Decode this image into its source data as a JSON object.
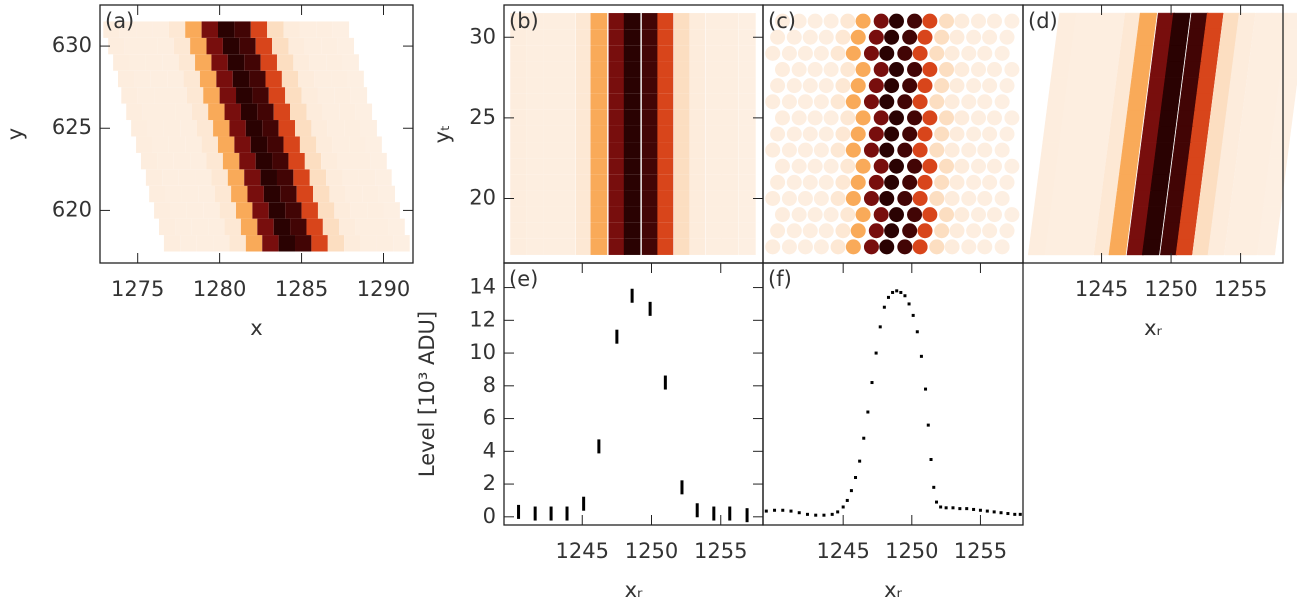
{
  "chart_data": [
    {
      "type": "heatmap",
      "label": "(a)",
      "xlabel": "x",
      "ylabel": "y",
      "rows": [
        618,
        619,
        620,
        621,
        622,
        623,
        624,
        625,
        626,
        627,
        628,
        629,
        630,
        631
      ],
      "trace": [
        1284.1,
        1283.8,
        1283.5,
        1283.2,
        1283.0,
        1282.7,
        1282.4,
        1282.1,
        1281.8,
        1281.5,
        1281.3,
        1281.0,
        1280.7,
        1280.4
      ],
      "values": [
        0.3,
        0.2,
        0.2,
        0.2,
        0.8,
        4.3,
        11.0,
        13.5,
        12.7,
        8.2,
        1.8,
        0.4,
        0.2,
        0.2,
        0.1
      ],
      "xlim": [
        1272.7,
        1291.8
      ],
      "ylim": [
        616.8,
        632.5
      ],
      "xticks": [
        1275,
        1280,
        1285,
        1290
      ],
      "yticks": [
        620,
        625,
        630
      ],
      "colormap": [
        "#fdf0e4",
        "#fcd9b8",
        "#f9a550",
        "#f47a1a",
        "#c8281c",
        "#6e0b0b",
        "#2a0202"
      ]
    },
    {
      "type": "heatmap",
      "label": "(b)",
      "ylabel": "yₜ",
      "x": [
        1240.4,
        1241.6,
        1242.75,
        1243.9,
        1245.1,
        1246.2,
        1247.5,
        1248.6,
        1249.9,
        1251.0,
        1252.2,
        1253.3,
        1254.5,
        1255.65,
        1256.9
      ],
      "rows": [
        17,
        18,
        19,
        20,
        21,
        22,
        23,
        24,
        25,
        26,
        27,
        28,
        29,
        30,
        31
      ],
      "values": [
        0.3,
        0.2,
        0.2,
        0.2,
        0.8,
        4.3,
        11.0,
        13.5,
        12.7,
        8.2,
        1.8,
        0.4,
        0.2,
        0.2,
        0.1
      ],
      "xlim": [
        1239.35,
        1258.05
      ],
      "ylim": [
        16,
        32
      ],
      "yticks": [
        20,
        25,
        30
      ],
      "colormap": [
        "#fdf0e4",
        "#fcd9b8",
        "#f9a550",
        "#f47a1a",
        "#c8281c",
        "#6e0b0b",
        "#2a0202"
      ]
    },
    {
      "type": "dots",
      "label": "(c)",
      "x": [
        1240.4,
        1241.6,
        1242.75,
        1243.9,
        1245.1,
        1246.2,
        1247.5,
        1248.6,
        1249.9,
        1251.0,
        1252.2,
        1253.3,
        1254.5,
        1255.65,
        1256.9
      ],
      "rows": [
        17,
        18,
        19,
        20,
        21,
        22,
        23,
        24,
        25,
        26,
        27,
        28,
        29,
        30,
        31
      ],
      "values": [
        0.3,
        0.2,
        0.2,
        0.2,
        0.8,
        4.3,
        11.0,
        13.5,
        12.7,
        8.2,
        1.8,
        0.4,
        0.2,
        0.2,
        0.1
      ],
      "xlim": [
        1239.35,
        1258.05
      ],
      "ylim": [
        16,
        32
      ],
      "colormap": [
        "#fdf0e4",
        "#fcd9b8",
        "#f9a550",
        "#f47a1a",
        "#c8281c",
        "#6e0b0b",
        "#2a0202"
      ]
    },
    {
      "type": "heatmap",
      "label": "(d)",
      "xlabel": "xᵣ",
      "sheared": true,
      "x": [
        1240.4,
        1241.6,
        1242.75,
        1243.9,
        1245.1,
        1246.2,
        1247.5,
        1248.6,
        1249.9,
        1251.0,
        1252.2,
        1253.3,
        1254.5,
        1255.65,
        1256.9
      ],
      "rows": [
        17,
        18,
        19,
        20,
        21,
        22,
        23,
        24,
        25,
        26,
        27,
        28,
        29,
        30,
        31
      ],
      "values": [
        0.3,
        0.2,
        0.2,
        0.2,
        0.8,
        4.3,
        11.0,
        13.5,
        12.7,
        8.2,
        1.8,
        0.4,
        0.2,
        0.2,
        0.1
      ],
      "xlim": [
        1239.35,
        1258.05
      ],
      "ylim": [
        16,
        32
      ],
      "xticks": [
        1245,
        1250,
        1255
      ],
      "colormap": [
        "#fdf0e4",
        "#fcd9b8",
        "#f9a550",
        "#f47a1a",
        "#c8281c",
        "#6e0b0b",
        "#2a0202"
      ]
    },
    {
      "type": "scatter",
      "marker": "dash",
      "label": "(e)",
      "xlabel": "xᵣ",
      "ylabel": "Level [10³ ADU]",
      "color": "#000000",
      "x": [
        1240.4,
        1241.6,
        1242.75,
        1243.9,
        1245.1,
        1246.2,
        1247.5,
        1248.6,
        1249.9,
        1251.0,
        1252.2,
        1253.3,
        1254.5,
        1255.65,
        1256.9
      ],
      "values": [
        0.3,
        0.2,
        0.2,
        0.2,
        0.8,
        4.3,
        11.0,
        13.5,
        12.7,
        8.2,
        1.8,
        0.4,
        0.2,
        0.2,
        0.1
      ],
      "xlim": [
        1239.35,
        1258.05
      ],
      "ylim": [
        -0.5,
        15.5
      ],
      "xticks": [
        1245,
        1250,
        1255
      ],
      "yticks": [
        0,
        2,
        4,
        6,
        8,
        10,
        12,
        14
      ]
    },
    {
      "type": "scatter",
      "marker": "dot",
      "label": "(f)",
      "xlabel": "xᵣ",
      "color": "#000000",
      "x": [
        1239.4,
        1240.0,
        1240.6,
        1241.2,
        1241.8,
        1242.4,
        1243.0,
        1243.6,
        1244.2,
        1244.6,
        1245.0,
        1245.3,
        1245.6,
        1245.9,
        1246.2,
        1246.5,
        1246.8,
        1247.1,
        1247.4,
        1247.7,
        1248.0,
        1248.3,
        1248.6,
        1248.9,
        1249.2,
        1249.5,
        1249.8,
        1250.1,
        1250.4,
        1250.7,
        1251.0,
        1251.2,
        1251.4,
        1251.6,
        1251.8,
        1252.1,
        1252.5,
        1253.0,
        1253.5,
        1254.0,
        1254.5,
        1255.0,
        1255.5,
        1256.0,
        1256.5,
        1257.0,
        1257.5,
        1257.9
      ],
      "values": [
        0.35,
        0.4,
        0.4,
        0.35,
        0.25,
        0.15,
        0.1,
        0.1,
        0.15,
        0.3,
        0.6,
        1.0,
        1.6,
        2.4,
        3.4,
        4.8,
        6.4,
        8.2,
        10.0,
        11.6,
        12.8,
        13.4,
        13.7,
        13.8,
        13.7,
        13.5,
        13.0,
        12.3,
        11.3,
        9.8,
        7.8,
        5.6,
        3.5,
        1.8,
        0.9,
        0.6,
        0.55,
        0.55,
        0.5,
        0.5,
        0.45,
        0.4,
        0.35,
        0.3,
        0.25,
        0.2,
        0.15,
        0.15
      ],
      "xlim": [
        1239.16,
        1258.1
      ],
      "ylim": [
        -0.5,
        15.5
      ],
      "xticks": [
        1245,
        1250,
        1255
      ]
    }
  ]
}
